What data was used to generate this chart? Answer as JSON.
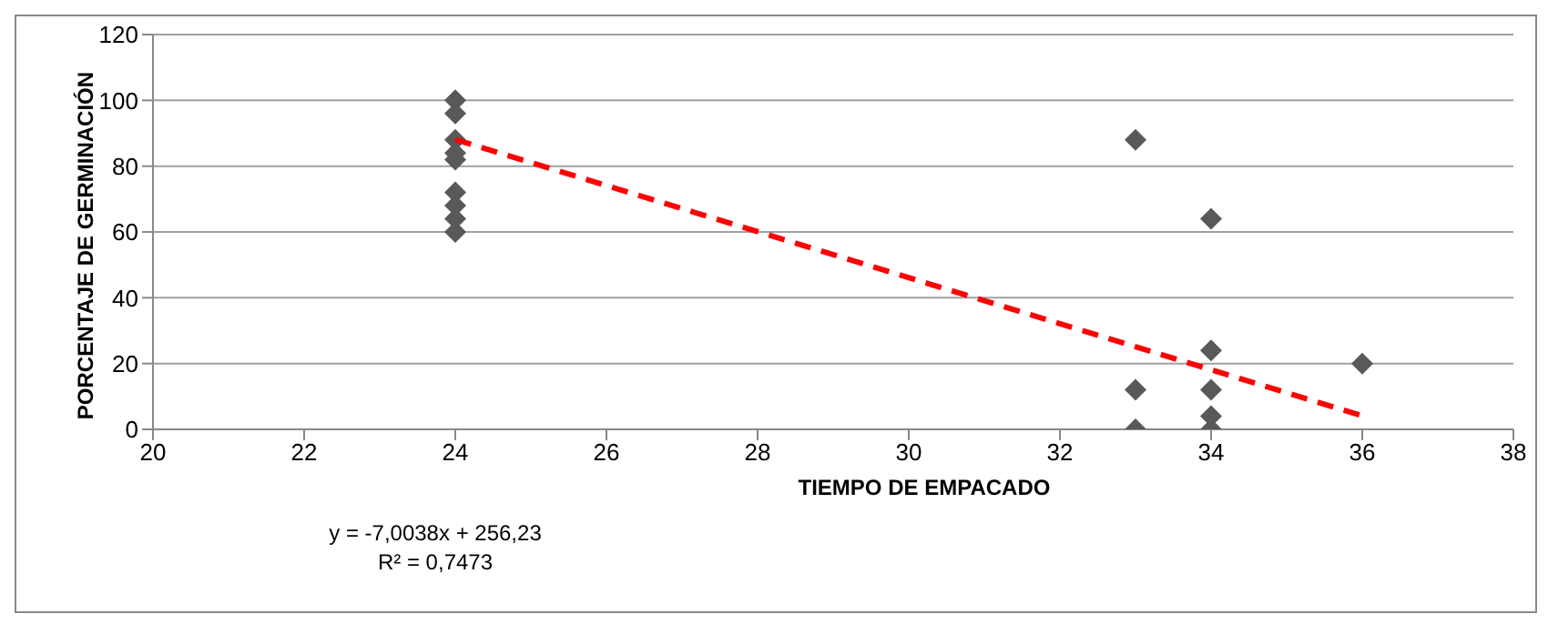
{
  "chart_data": {
    "type": "scatter",
    "xlabel": "TIEMPO DE EMPACADO",
    "ylabel": "PORCENTAJE DE GERMINACIÓN",
    "xlim": [
      20,
      38
    ],
    "xticks": [
      20,
      22,
      24,
      26,
      28,
      30,
      32,
      34,
      36,
      38
    ],
    "ylim": [
      0,
      120
    ],
    "yticks": [
      0,
      20,
      40,
      60,
      80,
      100,
      120
    ],
    "grid": "y",
    "marker": "diamond",
    "series": [
      {
        "color": "#595959",
        "x": [
          24,
          24,
          24,
          24,
          24,
          24,
          24,
          24,
          24,
          33,
          33,
          33,
          34,
          34,
          34,
          34,
          34,
          36
        ],
        "values": [
          100,
          96,
          88,
          84,
          82,
          72,
          68,
          64,
          60,
          88,
          12,
          0,
          64,
          24,
          12,
          4,
          0,
          20
        ]
      },
      {
        "type": "line",
        "color": "#ff0000",
        "line_style": "dashed",
        "marker": "none",
        "x": [
          24,
          36
        ],
        "values": [
          88.1,
          4.1
        ]
      }
    ],
    "annotations": [
      "y = -7,0038x + 256,23",
      "R² = 0,7473"
    ]
  }
}
